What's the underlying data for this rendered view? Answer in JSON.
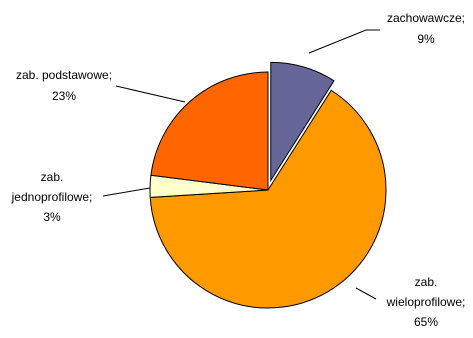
{
  "chart_data": {
    "type": "pie",
    "title": "",
    "categories": [
      "zachowawcze",
      "zab. wieloprofilowe",
      "zab. jednoprofilowe",
      "zab. podstawowe"
    ],
    "values": [
      9,
      65,
      3,
      23
    ],
    "value_suffix": "%",
    "exploded_slice": "zachowawcze",
    "start_angle": "12 o'clock, clockwise",
    "legend": "none (callout labels with leader lines)",
    "slices": [
      {
        "label_lines": [
          "zachowawcze;",
          "9%"
        ],
        "color": "#666699"
      },
      {
        "label_lines": [
          "zab.",
          "wieloprofilowe;",
          "65%"
        ],
        "color": "#FF9900"
      },
      {
        "label_lines": [
          "zab.",
          "jednoprofilowe;",
          "3%"
        ],
        "color": "#FFFFCC"
      },
      {
        "label_lines": [
          "zab. podstawowe;",
          "23%"
        ],
        "color": "#FF6600"
      }
    ]
  }
}
